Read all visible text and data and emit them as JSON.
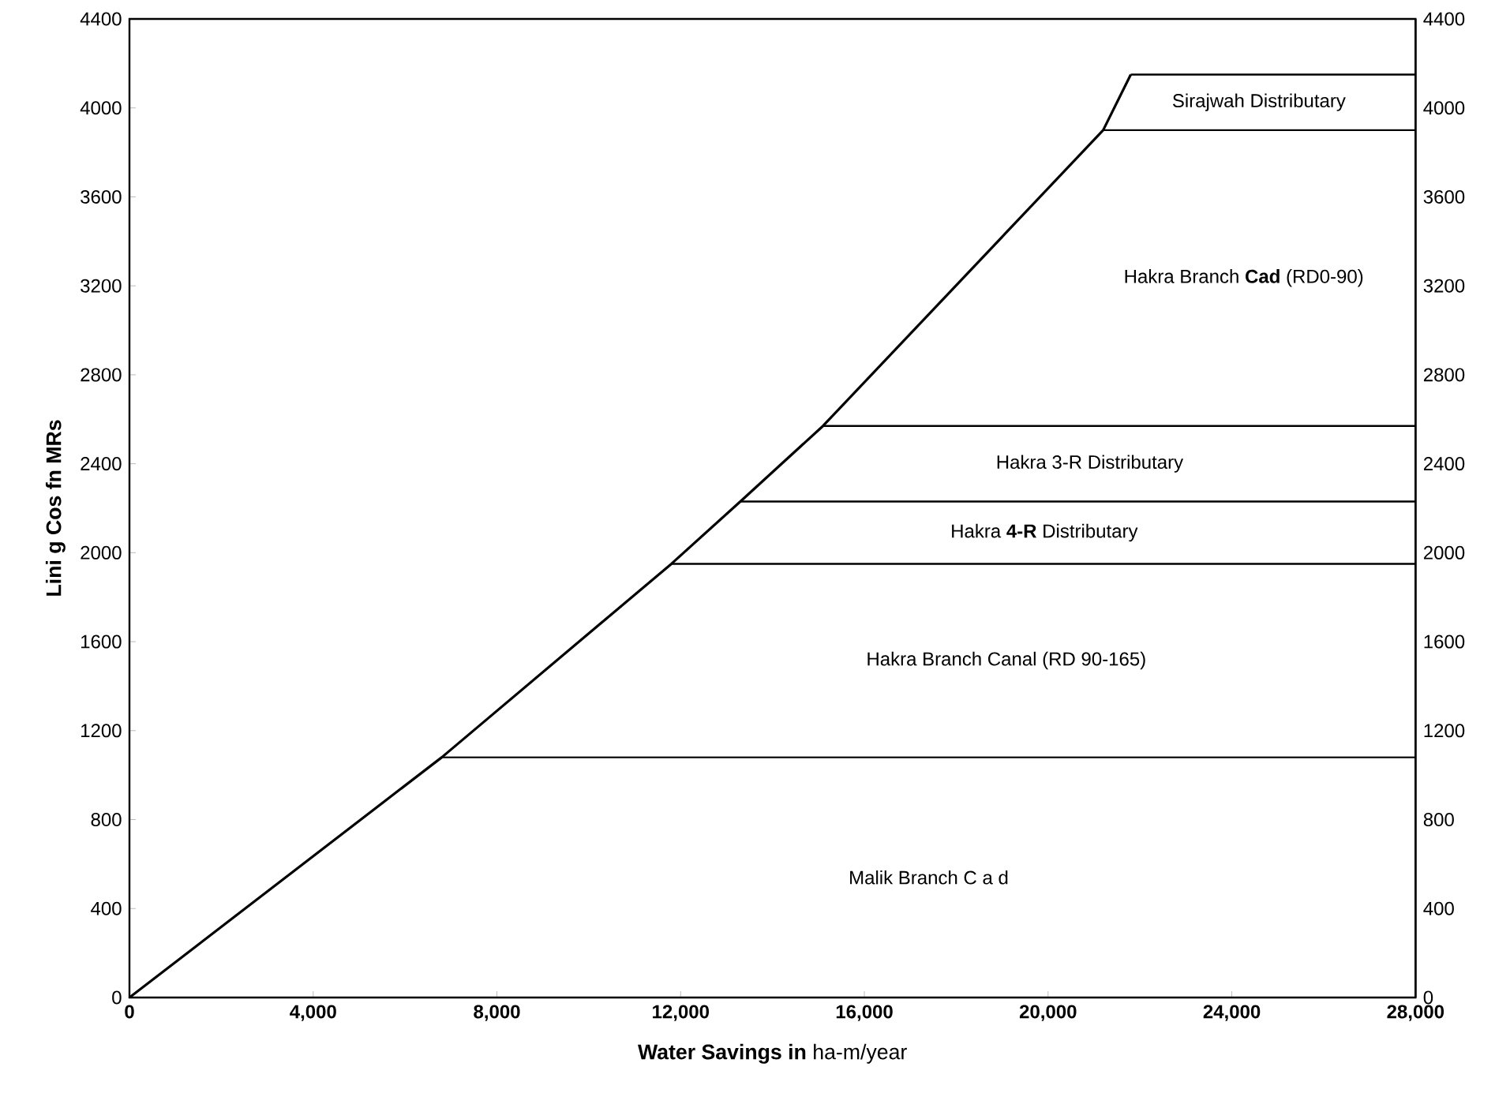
{
  "chart_data": {
    "type": "line",
    "xlabel": "**Water Savings in** ha-m/year",
    "ylabel": "Lini g Cos fn MRs",
    "xlim": [
      0,
      28000
    ],
    "ylim": [
      0,
      4400
    ],
    "y2lim": [
      0,
      4400
    ],
    "xticks": [
      0,
      {
        "value": 4000,
        "label": "4,000"
      },
      {
        "value": 8000,
        "label": "8,000"
      },
      {
        "value": 12000,
        "label": "12,000"
      },
      {
        "value": 16000,
        "label": "16,000"
      },
      {
        "value": 20000,
        "label": "20,000"
      },
      {
        "value": 24000,
        "label": "24,000"
      },
      {
        "value": 28000,
        "label": "28,000"
      }
    ],
    "yticks": [
      0,
      400,
      800,
      1200,
      1600,
      2000,
      2400,
      2800,
      3200,
      3600,
      4000,
      4400
    ],
    "y2ticks": [
      0,
      400,
      800,
      1200,
      1600,
      2000,
      2400,
      2800,
      3200,
      3600,
      4000,
      4400
    ],
    "marker": "none",
    "line_style": "solid",
    "series": [
      {
        "color": "#000000",
        "x": [
          0,
          6800,
          11800,
          13300,
          15100,
          21200,
          21800
        ],
        "values": [
          0,
          1080,
          1950,
          2230,
          2570,
          3900,
          4150
        ]
      },
      {
        "color": "#000000",
        "x": [
          6800,
          28000
        ],
        "values": [
          1080,
          1080
        ]
      },
      {
        "color": "#000000",
        "x": [
          11800,
          28000
        ],
        "values": [
          1950,
          1950
        ]
      },
      {
        "color": "#000000",
        "x": [
          13300,
          28000
        ],
        "values": [
          2230,
          2230
        ]
      },
      {
        "color": "#000000",
        "x": [
          15100,
          28000
        ],
        "values": [
          2570,
          2570
        ]
      },
      {
        "color": "#000000",
        "x": [
          21200,
          28000
        ],
        "values": [
          3900,
          3900
        ]
      },
      {
        "color": "#000000",
        "x": [
          21800,
          28000
        ],
        "values": [
          4150,
          4150
        ]
      }
    ],
    "annotations": [
      "Sirajwah Distributary",
      "Hakra Branch **Cad** (RD0-90)",
      "Hakra 3-R Distributary",
      "Hakra **4-R** Distributary",
      "Hakra Branch Canal (RD 90-165)",
      "Malik Branch C a d"
    ]
  }
}
